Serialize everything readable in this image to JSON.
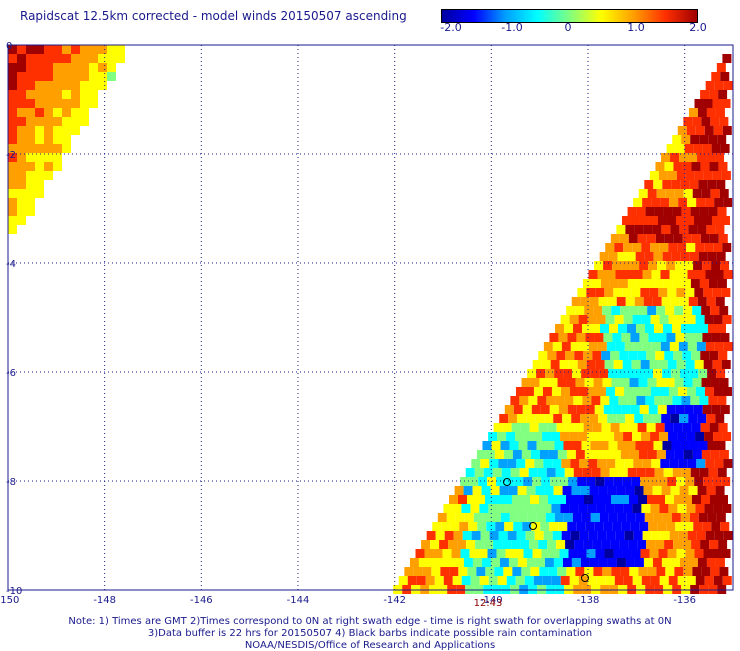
{
  "title": "Rapidscat 12.5km corrected - model winds 20150507 ascending",
  "colorbar": {
    "labels": [
      "-2.0",
      "-1.0",
      "0",
      "1.0",
      "2.0"
    ],
    "values": [
      -2.0,
      -1.0,
      0,
      1.0,
      2.0
    ],
    "min": -2.0,
    "max": 2.0,
    "colors": [
      "#0000a0",
      "#0000ff",
      "#00a0ff",
      "#00ffff",
      "#80ff80",
      "#ffff00",
      "#ffa000",
      "#ff3000",
      "#a00000"
    ]
  },
  "axes": {
    "x_ticks": [
      "-150",
      "-148",
      "-146",
      "-144",
      "-142",
      "-140",
      "-138",
      "-136"
    ],
    "x_values": [
      -150,
      -148,
      -146,
      -144,
      -142,
      -140,
      -138,
      -136
    ],
    "y_ticks": [
      "0",
      "-2",
      "-4",
      "-6",
      "-8",
      "-10"
    ],
    "y_values": [
      0,
      -2,
      -4,
      -6,
      -8,
      -10
    ],
    "x_range": [
      -150,
      -135
    ],
    "y_range": [
      -10,
      0
    ],
    "grid": "dotted"
  },
  "time_label": "12:43",
  "notes": [
    "Note: 1) Times are GMT 2)Times correspond to 0N at right swath edge - time is right swath for overlapping swaths at 0N",
    "3)Data buffer is 22 hrs for 20150507 4) Black barbs indicate possible rain contamination",
    "NOAA/NESDIS/Office of Research and Applications"
  ]
}
